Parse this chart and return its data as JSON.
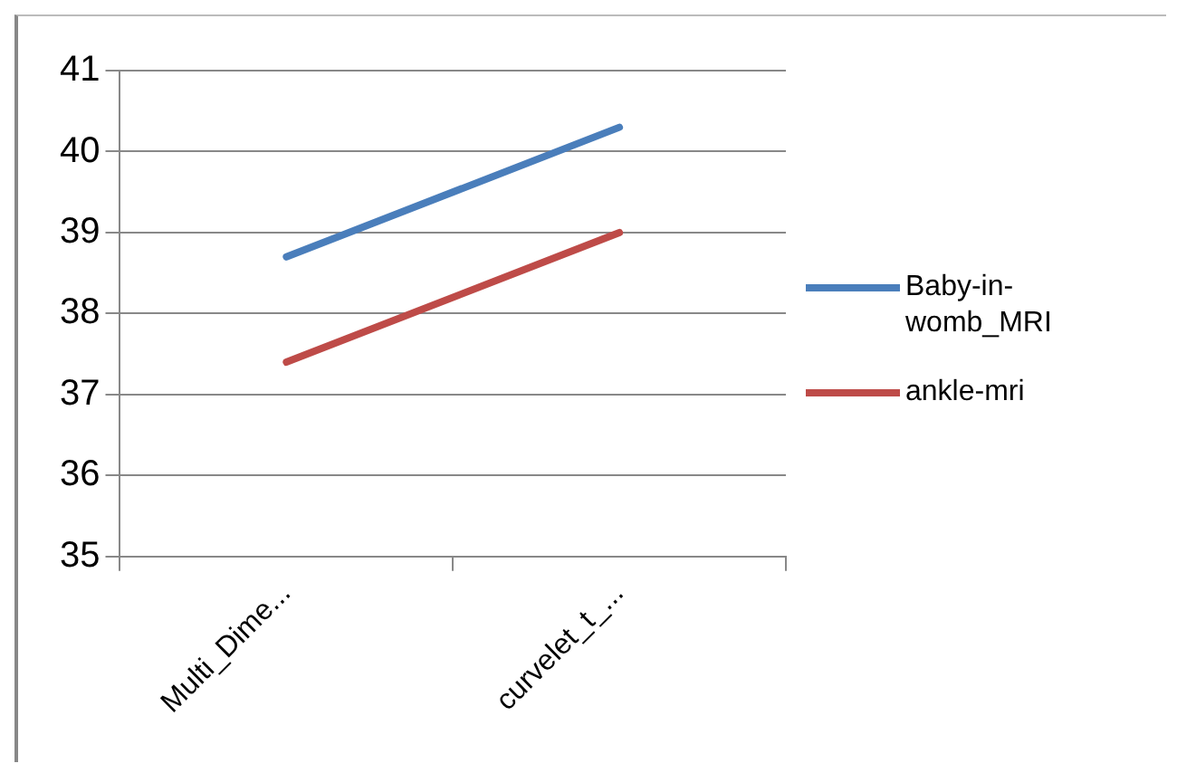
{
  "chart_data": {
    "type": "line",
    "categories": [
      "Multi_Dime...",
      "curvelet_t_..."
    ],
    "series": [
      {
        "name": "Baby-in-womb_MRI",
        "color": "#4a7ebb",
        "values": [
          38.7,
          40.3
        ]
      },
      {
        "name": "ankle-mri",
        "color": "#be4b48",
        "values": [
          37.4,
          39.0
        ]
      }
    ],
    "ylim": [
      35,
      41
    ],
    "yticks": [
      35,
      36,
      37,
      38,
      39,
      40,
      41
    ],
    "grid": "y",
    "legend": "right",
    "marker": "none",
    "line_style": "solid"
  }
}
